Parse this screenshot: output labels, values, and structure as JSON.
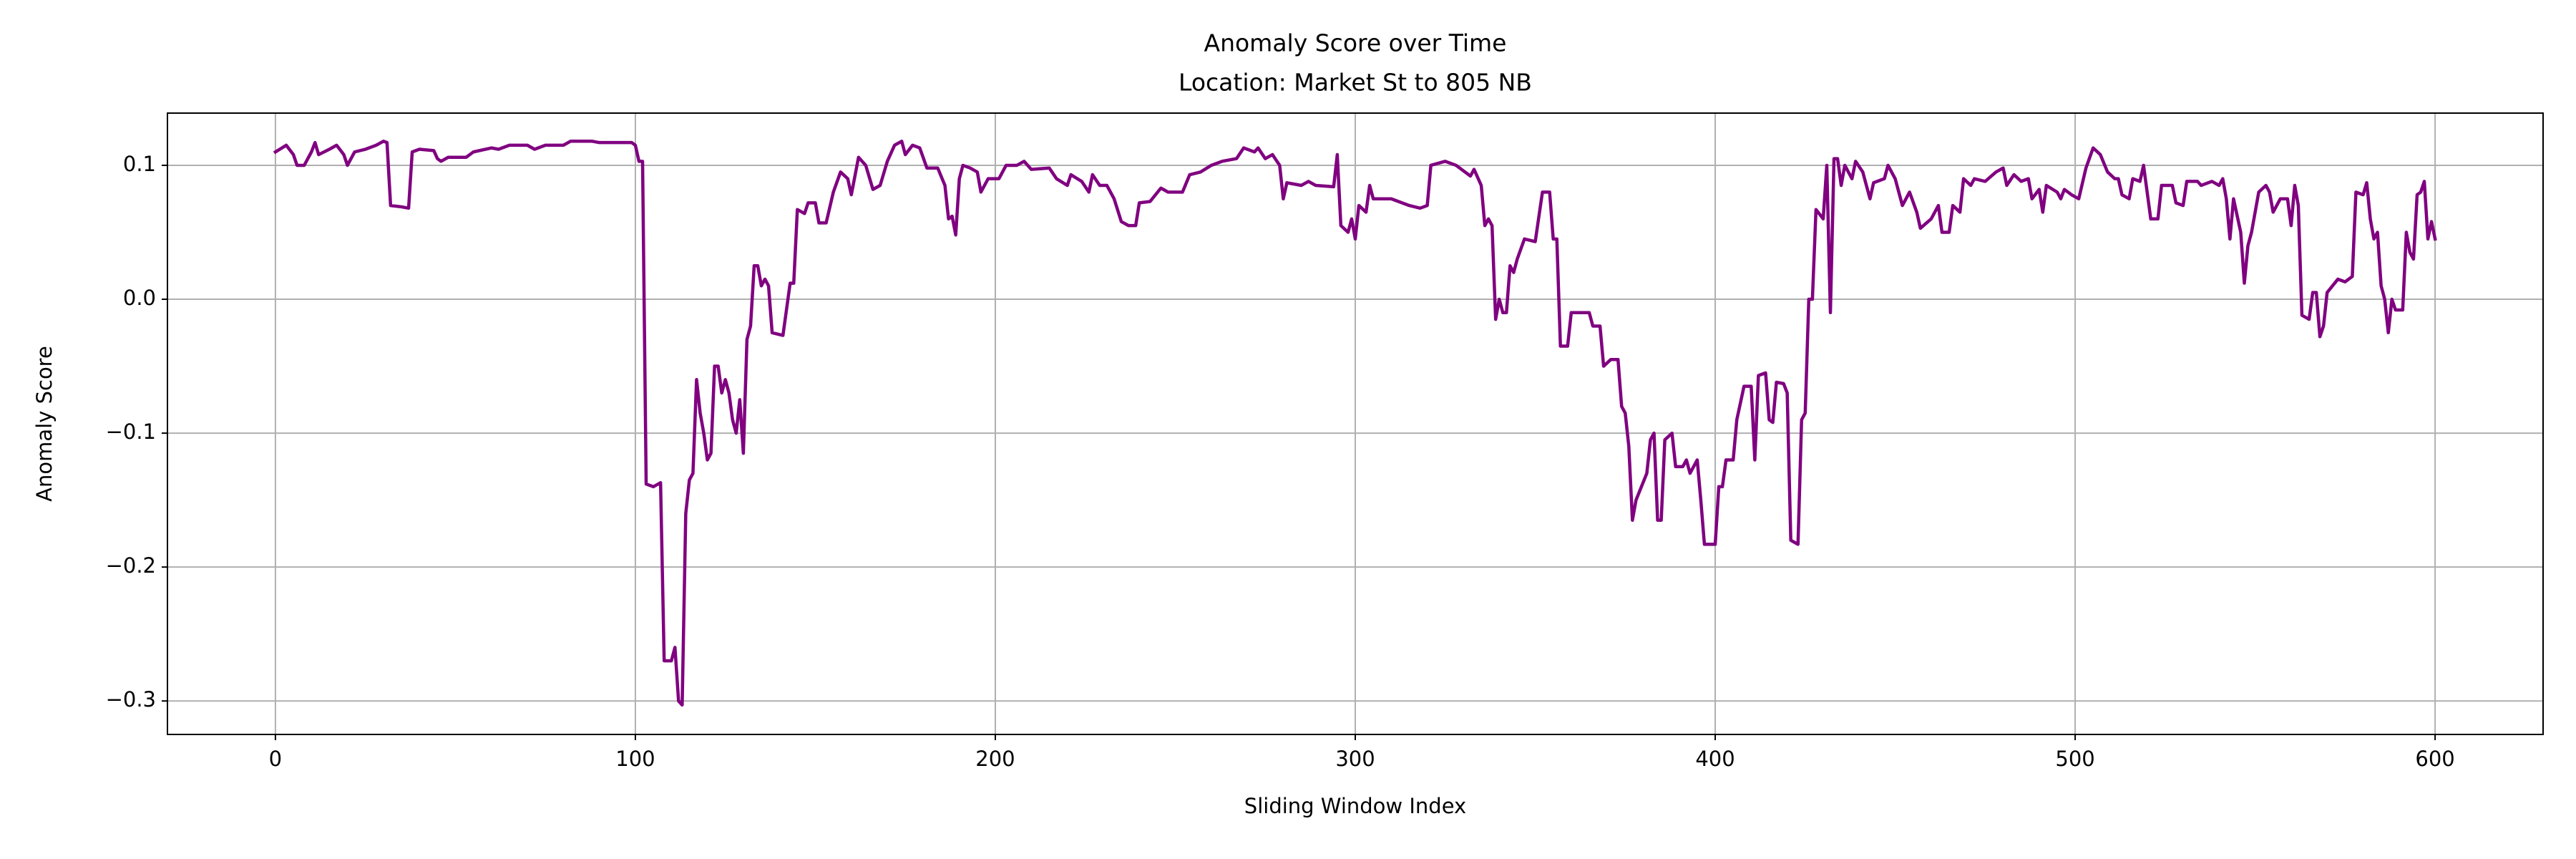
{
  "chart_data": {
    "type": "line",
    "title": "Anomaly Score over Time",
    "subtitle": "Location: Market St to 805 NB",
    "x_label": "Sliding Window Index",
    "y_label": "Anomaly Score",
    "color": "#800080",
    "grid": true,
    "xlim": [
      -30,
      630
    ],
    "ylim": [
      -0.325,
      0.139
    ],
    "xticks": [
      0,
      100,
      200,
      300,
      400,
      500,
      600
    ],
    "yticks": [
      {
        "value": -0.3,
        "label": "−0.3"
      },
      {
        "value": -0.2,
        "label": "−0.2"
      },
      {
        "value": -0.1,
        "label": "−0.1"
      },
      {
        "value": 0,
        "label": "0.0"
      },
      0.1
    ],
    "x": [
      0,
      3,
      5,
      6,
      8,
      10,
      11,
      12,
      15,
      17,
      19,
      20,
      22,
      25,
      28,
      30,
      31,
      32,
      35,
      37,
      38,
      40,
      44,
      45,
      46,
      48,
      53,
      55,
      60,
      62,
      65,
      70,
      72,
      75,
      80,
      82,
      88,
      90,
      95,
      99,
      100,
      101,
      102,
      103,
      105,
      107,
      108,
      110,
      111,
      112,
      113,
      114,
      115,
      116,
      117,
      118,
      119,
      120,
      121,
      122,
      123,
      124,
      125,
      126,
      127,
      128,
      129,
      130,
      131,
      132,
      133,
      134,
      135,
      136,
      137,
      138,
      141,
      143,
      144,
      145,
      147,
      148,
      150,
      151,
      153,
      155,
      157,
      159,
      160,
      162,
      164,
      166,
      168,
      170,
      172,
      174,
      175,
      177,
      179,
      181,
      184,
      186,
      187,
      188,
      189,
      190,
      191,
      193,
      195,
      196,
      198,
      201,
      203,
      206,
      208,
      210,
      215,
      217,
      220,
      221,
      224,
      226,
      227,
      229,
      231,
      233,
      235,
      237,
      239,
      240,
      243,
      246,
      248,
      252,
      254,
      257,
      260,
      263,
      267,
      269,
      272,
      273,
      275,
      277,
      279,
      280,
      281,
      285,
      287,
      289,
      294,
      295,
      296,
      298,
      299,
      300,
      301,
      303,
      304,
      305,
      310,
      315,
      318,
      320,
      321,
      325,
      328,
      332,
      333,
      335,
      336,
      337,
      338,
      339,
      340,
      341,
      342,
      343,
      344,
      345,
      347,
      350,
      352,
      354,
      355,
      356,
      357,
      359,
      360,
      365,
      366,
      368,
      369,
      371,
      373,
      374,
      375,
      376,
      377,
      378,
      381,
      382,
      383,
      384,
      385,
      386,
      388,
      389,
      391,
      392,
      393,
      395,
      396,
      397,
      400,
      401,
      402,
      403,
      405,
      406,
      408,
      410,
      411,
      412,
      414,
      415,
      416,
      417,
      419,
      420,
      421,
      423,
      424,
      425,
      426,
      427,
      428,
      430,
      431,
      432,
      433,
      434,
      435,
      436,
      438,
      439,
      441,
      443,
      444,
      447,
      448,
      450,
      452,
      454,
      456,
      457,
      460,
      462,
      463,
      465,
      466,
      468,
      469,
      471,
      472,
      475,
      478,
      480,
      481,
      483,
      485,
      487,
      488,
      490,
      491,
      492,
      495,
      496,
      497,
      499,
      501,
      503,
      505,
      507,
      509,
      511,
      512,
      513,
      515,
      516,
      518,
      519,
      521,
      523,
      524,
      527,
      528,
      530,
      531,
      534,
      535,
      538,
      540,
      541,
      542,
      543,
      544,
      546,
      547,
      548,
      549,
      551,
      553,
      554,
      555,
      557,
      559,
      560,
      561,
      562,
      563,
      565,
      566,
      567,
      568,
      569,
      570,
      573,
      575,
      577,
      578,
      580,
      581,
      582,
      583,
      584,
      585,
      586,
      587,
      588,
      589,
      591,
      592,
      593,
      594,
      595,
      596,
      597,
      598,
      599,
      600
    ],
    "values": [
      0.11,
      0.115,
      0.108,
      0.1,
      0.1,
      0.11,
      0.117,
      0.108,
      0.112,
      0.115,
      0.108,
      0.1,
      0.11,
      0.112,
      0.115,
      0.118,
      0.117,
      0.07,
      0.069,
      0.068,
      0.11,
      0.112,
      0.111,
      0.105,
      0.103,
      0.106,
      0.106,
      0.11,
      0.113,
      0.112,
      0.115,
      0.115,
      0.112,
      0.115,
      0.115,
      0.118,
      0.118,
      0.117,
      0.117,
      0.117,
      0.115,
      0.103,
      0.103,
      -0.138,
      -0.14,
      -0.137,
      -0.27,
      -0.27,
      -0.26,
      -0.3,
      -0.303,
      -0.16,
      -0.135,
      -0.13,
      -0.06,
      -0.085,
      -0.1,
      -0.12,
      -0.115,
      -0.05,
      -0.05,
      -0.07,
      -0.06,
      -0.07,
      -0.09,
      -0.1,
      -0.075,
      -0.115,
      -0.03,
      -0.02,
      0.025,
      0.025,
      0.01,
      0.015,
      0.01,
      -0.025,
      -0.027,
      0.012,
      0.012,
      0.067,
      0.064,
      0.072,
      0.072,
      0.057,
      0.057,
      0.08,
      0.095,
      0.09,
      0.078,
      0.106,
      0.1,
      0.082,
      0.085,
      0.103,
      0.115,
      0.118,
      0.108,
      0.115,
      0.113,
      0.098,
      0.098,
      0.085,
      0.06,
      0.062,
      0.048,
      0.09,
      0.1,
      0.098,
      0.095,
      0.08,
      0.09,
      0.09,
      0.1,
      0.1,
      0.103,
      0.097,
      0.098,
      0.09,
      0.085,
      0.093,
      0.088,
      0.08,
      0.093,
      0.085,
      0.085,
      0.075,
      0.058,
      0.055,
      0.055,
      0.072,
      0.073,
      0.083,
      0.08,
      0.08,
      0.093,
      0.095,
      0.1,
      0.103,
      0.105,
      0.113,
      0.11,
      0.113,
      0.105,
      0.108,
      0.1,
      0.075,
      0.087,
      0.085,
      0.088,
      0.085,
      0.084,
      0.108,
      0.055,
      0.05,
      0.06,
      0.045,
      0.07,
      0.065,
      0.085,
      0.075,
      0.075,
      0.07,
      0.068,
      0.07,
      0.1,
      0.103,
      0.1,
      0.092,
      0.097,
      0.085,
      0.055,
      0.06,
      0.055,
      -0.015,
      0,
      -0.01,
      -0.01,
      0.025,
      0.02,
      0.03,
      0.045,
      0.043,
      0.08,
      0.08,
      0.045,
      0.045,
      -0.035,
      -0.035,
      -0.01,
      -0.01,
      -0.02,
      -0.02,
      -0.05,
      -0.045,
      -0.045,
      -0.08,
      -0.085,
      -0.11,
      -0.165,
      -0.15,
      -0.13,
      -0.105,
      -0.1,
      -0.165,
      -0.165,
      -0.105,
      -0.1,
      -0.125,
      -0.125,
      -0.12,
      -0.13,
      -0.12,
      -0.15,
      -0.183,
      -0.183,
      -0.14,
      -0.14,
      -0.12,
      -0.12,
      -0.09,
      -0.065,
      -0.065,
      -0.12,
      -0.057,
      -0.055,
      -0.09,
      -0.092,
      -0.062,
      -0.063,
      -0.07,
      -0.18,
      -0.183,
      -0.09,
      -0.085,
      0,
      0,
      0.067,
      0.06,
      0.1,
      -0.01,
      0.105,
      0.105,
      0.085,
      0.1,
      0.09,
      0.103,
      0.095,
      0.075,
      0.087,
      0.09,
      0.1,
      0.09,
      0.07,
      0.08,
      0.065,
      0.053,
      0.06,
      0.07,
      0.05,
      0.05,
      0.07,
      0.065,
      0.09,
      0.085,
      0.09,
      0.088,
      0.095,
      0.098,
      0.085,
      0.093,
      0.088,
      0.09,
      0.075,
      0.082,
      0.065,
      0.085,
      0.08,
      0.075,
      0.082,
      0.078,
      0.075,
      0.098,
      0.113,
      0.108,
      0.095,
      0.09,
      0.09,
      0.078,
      0.075,
      0.09,
      0.088,
      0.1,
      0.06,
      0.06,
      0.085,
      0.085,
      0.072,
      0.07,
      0.088,
      0.088,
      0.085,
      0.088,
      0.085,
      0.09,
      0.075,
      0.045,
      0.075,
      0.05,
      0.012,
      0.04,
      0.05,
      0.08,
      0.085,
      0.08,
      0.065,
      0.075,
      0.075,
      0.055,
      0.085,
      0.07,
      -0.012,
      -0.015,
      0.005,
      0.005,
      -0.028,
      -0.02,
      0.005,
      0.015,
      0.013,
      0.017,
      0.08,
      0.078,
      0.087,
      0.06,
      0.045,
      0.05,
      0.01,
      0,
      -0.025,
      0,
      -0.008,
      -0.008,
      0.05,
      0.035,
      0.03,
      0.078,
      0.08,
      0.088,
      0.045,
      0.058,
      0.045
    ]
  }
}
